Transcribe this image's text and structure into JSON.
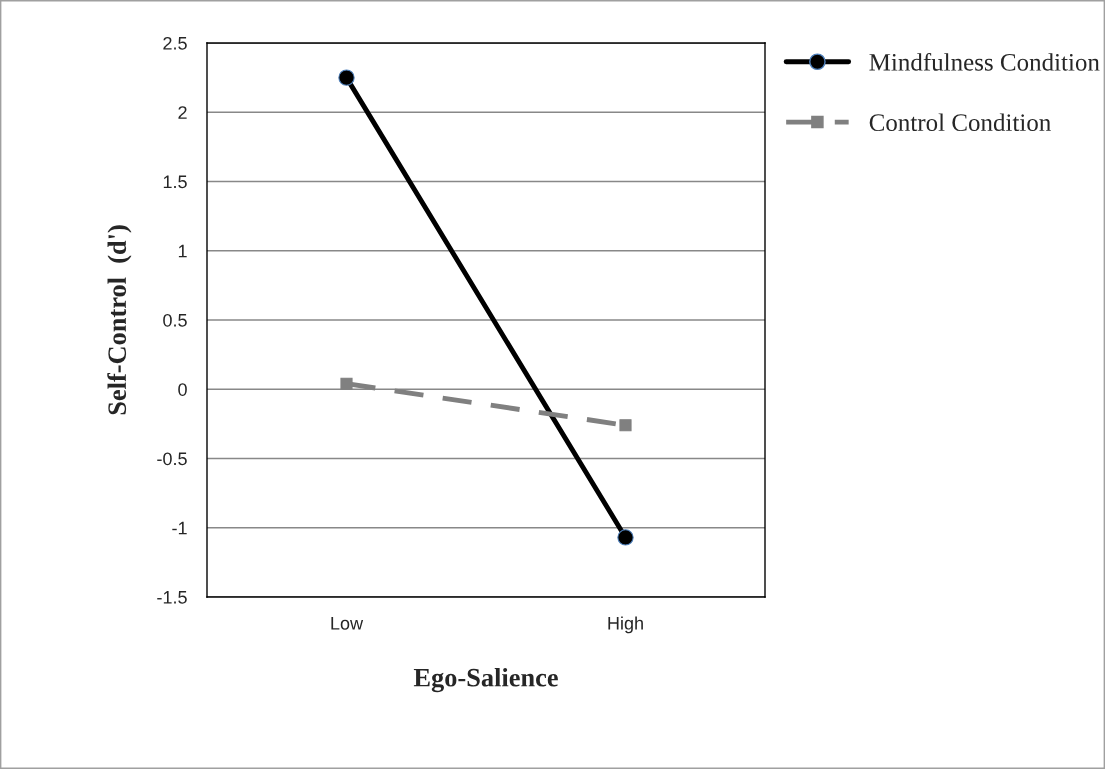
{
  "chart_data": {
    "type": "line",
    "xlabel": "Ego-Salience",
    "ylabel": "Self-Control  (d')",
    "categories": [
      "Low",
      "High"
    ],
    "series": [
      {
        "name": "Mindfulness Condition",
        "color": "#000000",
        "values": [
          2.25,
          -1.07
        ],
        "marker": "circle",
        "line_style": "solid"
      },
      {
        "name": "Control Condition",
        "color": "#808080",
        "values": [
          0.04,
          -0.26
        ],
        "marker": "square",
        "line_style": "dashed"
      }
    ],
    "ylim": [
      -1.5,
      2.5
    ],
    "yticks": [
      -1.5,
      -1,
      -0.5,
      0,
      0.5,
      1,
      1.5,
      2,
      2.5
    ],
    "grid": "y",
    "legend": "top right"
  }
}
